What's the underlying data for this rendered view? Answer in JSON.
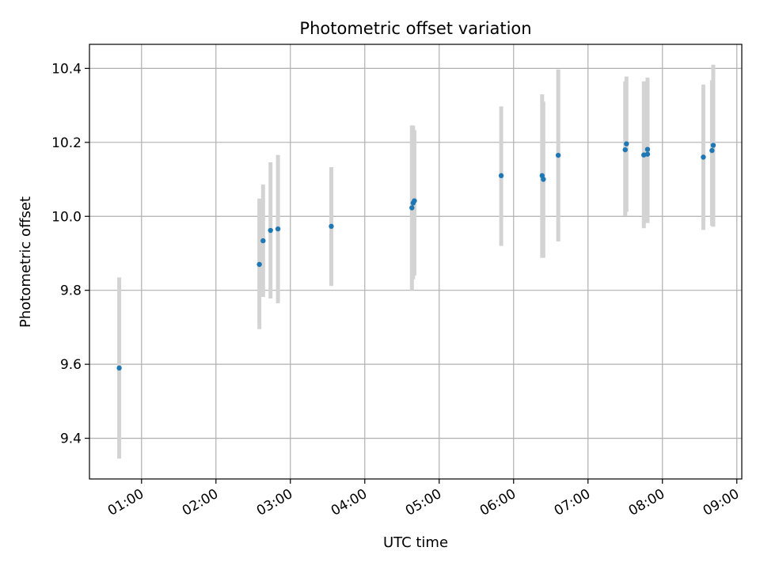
{
  "chart_data": {
    "type": "scatter",
    "title": "Photometric offset variation",
    "xlabel": "UTC time",
    "ylabel": "Photometric offset",
    "x_tick_labels": [
      "01:00",
      "02:00",
      "03:00",
      "04:00",
      "05:00",
      "06:00",
      "07:00",
      "08:00",
      "09:00"
    ],
    "y_tick_labels": [
      "9.4",
      "9.6",
      "9.8",
      "10.0",
      "10.2",
      "10.4"
    ],
    "xlim": [
      "00:18",
      "09:04"
    ],
    "ylim": [
      9.29,
      10.465
    ],
    "grid": true,
    "colors": {
      "point": "#1f77b4",
      "errorbar": "#d3d3d3",
      "grid": "#b0b0b0"
    },
    "series": [
      {
        "points": [
          {
            "x": "00:42",
            "y": 9.59,
            "ylo": 9.345,
            "yhi": 9.835
          },
          {
            "x": "02:35",
            "y": 9.87,
            "ylo": 9.695,
            "yhi": 10.048
          },
          {
            "x": "02:38",
            "y": 9.934,
            "ylo": 9.782,
            "yhi": 10.086
          },
          {
            "x": "02:44",
            "y": 9.962,
            "ylo": 9.778,
            "yhi": 10.146
          },
          {
            "x": "02:50",
            "y": 9.966,
            "ylo": 9.765,
            "yhi": 10.166
          },
          {
            "x": "03:33",
            "y": 9.973,
            "ylo": 9.812,
            "yhi": 10.133
          },
          {
            "x": "04:38",
            "y": 10.023,
            "ylo": 9.8,
            "yhi": 10.246
          },
          {
            "x": "04:39",
            "y": 10.036,
            "ylo": 9.83,
            "yhi": 10.245
          },
          {
            "x": "04:40",
            "y": 10.042,
            "ylo": 9.84,
            "yhi": 10.233
          },
          {
            "x": "05:50",
            "y": 10.11,
            "ylo": 9.92,
            "yhi": 10.297
          },
          {
            "x": "06:23",
            "y": 10.11,
            "ylo": 9.888,
            "yhi": 10.33
          },
          {
            "x": "06:24",
            "y": 10.1,
            "ylo": 9.888,
            "yhi": 10.31
          },
          {
            "x": "06:36",
            "y": 10.165,
            "ylo": 9.932,
            "yhi": 10.397
          },
          {
            "x": "07:30",
            "y": 10.18,
            "ylo": 10.002,
            "yhi": 10.365
          },
          {
            "x": "07:31",
            "y": 10.196,
            "ylo": 10.012,
            "yhi": 10.378
          },
          {
            "x": "07:45",
            "y": 10.166,
            "ylo": 9.968,
            "yhi": 10.365
          },
          {
            "x": "07:48",
            "y": 10.181,
            "ylo": 9.982,
            "yhi": 10.375
          },
          {
            "x": "07:48",
            "y": 10.168,
            "ylo": 9.982,
            "yhi": 10.36
          },
          {
            "x": "08:33",
            "y": 10.16,
            "ylo": 9.963,
            "yhi": 10.356
          },
          {
            "x": "08:40",
            "y": 10.178,
            "ylo": 9.975,
            "yhi": 10.368
          },
          {
            "x": "08:41",
            "y": 10.192,
            "ylo": 9.972,
            "yhi": 10.41
          }
        ]
      }
    ]
  }
}
